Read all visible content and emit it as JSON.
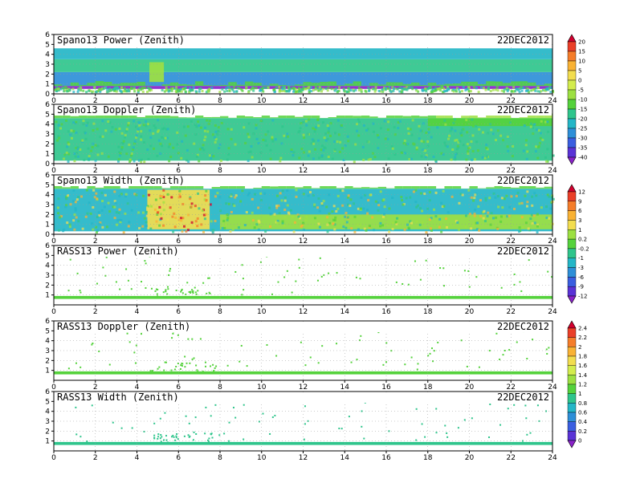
{
  "chart_data": [
    {
      "type": "heatmap",
      "title": "Spano13 Power (Zenith)",
      "date": "22DEC2012",
      "xlim": [
        0,
        24
      ],
      "ylim": [
        0,
        6
      ],
      "x_ticks": [
        "0",
        "2",
        "4",
        "6",
        "8",
        "10",
        "12",
        "14",
        "16",
        "18",
        "20",
        "22",
        "24"
      ],
      "y_ticks": [
        "0",
        "1",
        "2",
        "3",
        "4",
        "5",
        "6"
      ],
      "grid": true,
      "regions": [
        {
          "x": [
            0,
            24
          ],
          "y": [
            0.5,
            0.8
          ],
          "level": -38
        },
        {
          "x": [
            0,
            24
          ],
          "y": [
            0.8,
            2.2
          ],
          "level": -25
        },
        {
          "x": [
            0,
            24
          ],
          "y": [
            2.2,
            3.5
          ],
          "level": -17
        },
        {
          "x": [
            0,
            24
          ],
          "y": [
            3.5,
            4.6
          ],
          "level": -22
        },
        {
          "x": [
            4.6,
            5.3
          ],
          "y": [
            1.2,
            3.2
          ],
          "level": -4
        }
      ]
    },
    {
      "type": "heatmap",
      "title": "Spano13 Doppler (Zenith)",
      "date": "22DEC2012",
      "xlim": [
        0,
        24
      ],
      "ylim": [
        0,
        6
      ],
      "x_ticks": [
        "0",
        "2",
        "4",
        "6",
        "8",
        "10",
        "12",
        "14",
        "16",
        "18",
        "20",
        "22",
        "24"
      ],
      "y_ticks": [
        "0",
        "1",
        "2",
        "3",
        "4",
        "5",
        "6"
      ],
      "grid": true,
      "regions": [
        {
          "x": [
            0,
            24
          ],
          "y": [
            0.3,
            4.6
          ],
          "level": -15
        },
        {
          "x": [
            18,
            24
          ],
          "y": [
            3.8,
            4.6
          ],
          "level": -10
        }
      ]
    },
    {
      "type": "heatmap",
      "title": "Spano13 Width (Zenith)",
      "date": "22DEC2012",
      "xlim": [
        0,
        24
      ],
      "ylim": [
        0,
        6
      ],
      "x_ticks": [
        "0",
        "2",
        "4",
        "6",
        "8",
        "10",
        "12",
        "14",
        "16",
        "18",
        "20",
        "22",
        "24"
      ],
      "y_ticks": [
        "0",
        "1",
        "2",
        "3",
        "4",
        "5",
        "6"
      ],
      "grid": true,
      "regions": [
        {
          "x": [
            0,
            24
          ],
          "y": [
            0.3,
            4.6
          ],
          "level": -1
        },
        {
          "x": [
            4.5,
            7.5
          ],
          "y": [
            0.5,
            4.5
          ],
          "level": 3
        },
        {
          "x": [
            8,
            24
          ],
          "y": [
            0.5,
            2.0
          ],
          "level": 1
        }
      ]
    },
    {
      "type": "heatmap",
      "title": "RASS13 Power (Zenith)",
      "date": "22DEC2012",
      "xlim": [
        0,
        24
      ],
      "ylim": [
        0,
        6
      ],
      "x_ticks": [
        "0",
        "2",
        "4",
        "6",
        "8",
        "10",
        "12",
        "14",
        "16",
        "18",
        "20",
        "22",
        "24"
      ],
      "y_ticks": [
        "1",
        "2",
        "3",
        "4",
        "5",
        "6"
      ],
      "grid": true,
      "regions": [
        {
          "x": [
            0,
            24
          ],
          "y": [
            0.6,
            0.9
          ],
          "level": -12
        }
      ]
    },
    {
      "type": "heatmap",
      "title": "RASS13 Doppler (Zenith)",
      "date": "22DEC2012",
      "xlim": [
        0,
        24
      ],
      "ylim": [
        0,
        6
      ],
      "x_ticks": [
        "0",
        "2",
        "4",
        "6",
        "8",
        "10",
        "12",
        "14",
        "16",
        "18",
        "20",
        "22",
        "24"
      ],
      "y_ticks": [
        "1",
        "2",
        "3",
        "4",
        "5",
        "6"
      ],
      "grid": true,
      "regions": [
        {
          "x": [
            0,
            24
          ],
          "y": [
            0.6,
            0.9
          ],
          "level": 1.2
        }
      ]
    },
    {
      "type": "heatmap",
      "title": "RASS13 Width (Zenith)",
      "date": "22DEC2012",
      "xlim": [
        0,
        24
      ],
      "ylim": [
        0,
        6
      ],
      "x_ticks": [
        "0",
        "2",
        "4",
        "6",
        "8",
        "10",
        "12",
        "14",
        "16",
        "18",
        "20",
        "22",
        "24"
      ],
      "y_ticks": [
        "1",
        "2",
        "3",
        "4",
        "5",
        "6"
      ],
      "grid": true,
      "regions": [
        {
          "x": [
            0,
            24
          ],
          "y": [
            0.6,
            0.9
          ],
          "level": 1
        }
      ]
    }
  ],
  "colorbars": [
    {
      "labels": [
        "20",
        "15",
        "10",
        "5",
        "0",
        "-5",
        "-10",
        "-15",
        "-20",
        "-25",
        "-30",
        "-35",
        "-40"
      ],
      "colors": [
        "#d2002e",
        "#ea3f28",
        "#f57d2a",
        "#f9b234",
        "#f2dd4f",
        "#d3ec4d",
        "#9de042",
        "#55d23c",
        "#2fc58c",
        "#24b6c7",
        "#2e8fd8",
        "#3a5ee0",
        "#5a33d6",
        "#8a22c9"
      ]
    },
    {
      "labels": [
        "12",
        "9",
        "6",
        "3",
        "1",
        "0.2",
        "-0.2",
        "-1",
        "-3",
        "-6",
        "-9",
        "-12"
      ],
      "colors": [
        "#d2002e",
        "#ea3f28",
        "#f57d2a",
        "#f9b234",
        "#f2dd4f",
        "#9de042",
        "#55d23c",
        "#2fc58c",
        "#24b6c7",
        "#2e8fd8",
        "#3a5ee0",
        "#5a33d6",
        "#8a22c9"
      ]
    },
    {
      "labels": [
        "2.4",
        "2.2",
        "2",
        "1.8",
        "1.6",
        "1.4",
        "1.2",
        "1",
        "0.8",
        "0.6",
        "0.4",
        "0.2",
        "0"
      ],
      "colors": [
        "#d2002e",
        "#ea3f28",
        "#f57d2a",
        "#f9b234",
        "#f2dd4f",
        "#d3ec4d",
        "#9de042",
        "#55d23c",
        "#2fc58c",
        "#24b6c7",
        "#2e8fd8",
        "#3a5ee0",
        "#5a33d6",
        "#8a22c9"
      ]
    }
  ]
}
